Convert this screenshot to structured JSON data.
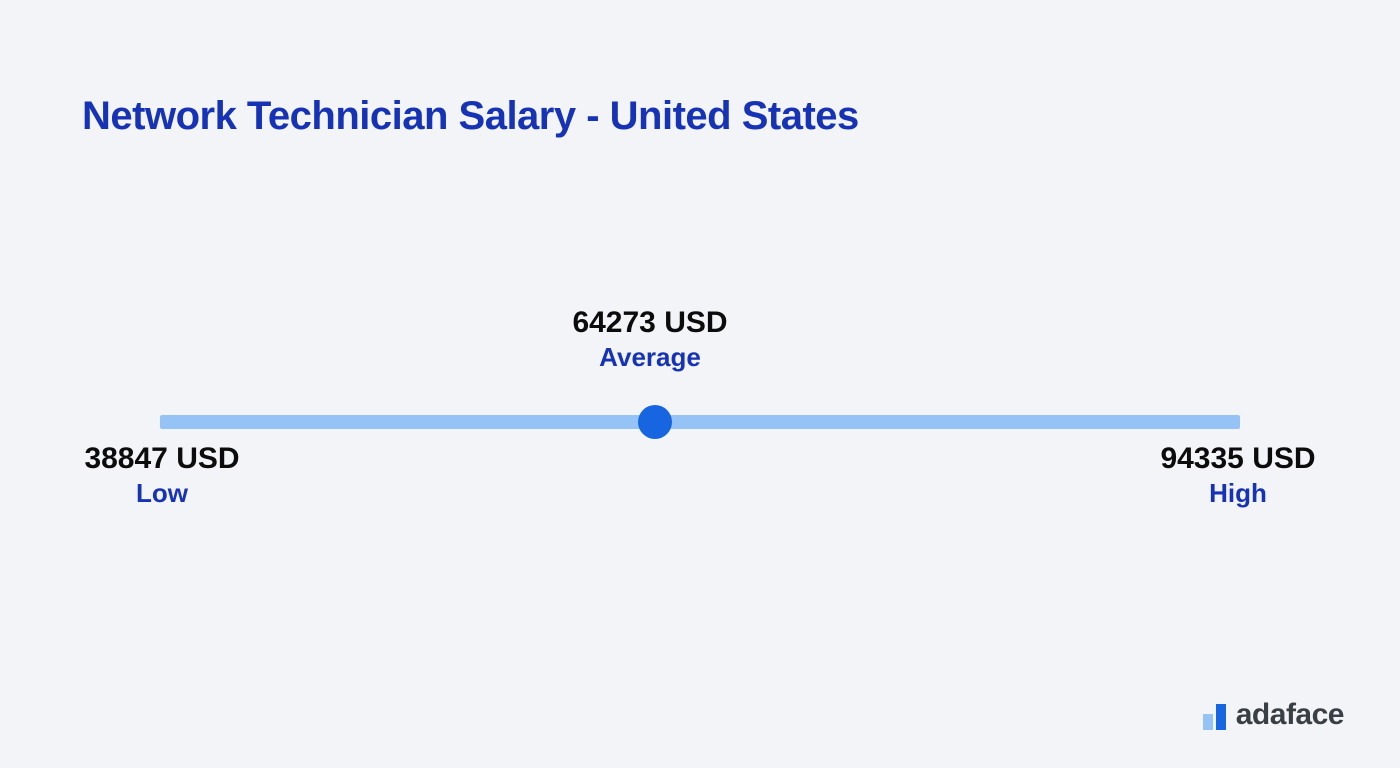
{
  "title": "Network Technician Salary - United States",
  "chart": {
    "type": "range-slider",
    "track_color": "#96c3f5",
    "dot_color": "#1765e0",
    "background_color": "#f3f4f7",
    "value_fontsize": 30,
    "value_color": "#0c0c0d",
    "label_fontsize": 26,
    "label_color": "#1733b5",
    "title_color": "#1733b5",
    "title_fontsize": 40,
    "low": {
      "value": "38847 USD",
      "label": "Low"
    },
    "average": {
      "value": "64273 USD",
      "label": "Average",
      "position_percent": 45.8
    },
    "high": {
      "value": "94335 USD",
      "label": "High"
    }
  },
  "brand": {
    "name": "adaface",
    "text_color": "#3a3f45",
    "icon_color_light": "#96c3f5",
    "icon_color_dark": "#1765e0"
  }
}
